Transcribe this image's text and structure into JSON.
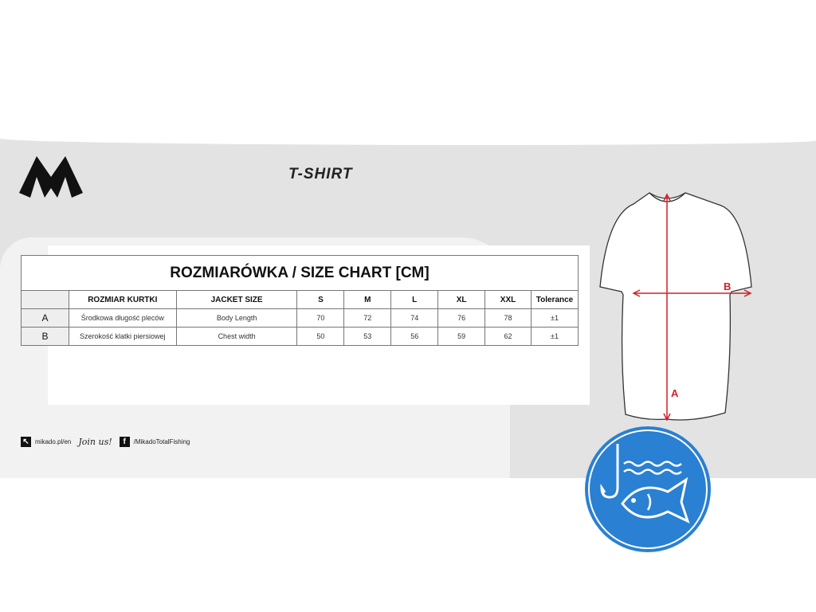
{
  "header": {
    "title": "T-SHIRT",
    "logo": "Mikado"
  },
  "table": {
    "title": "ROZMIARÓWKA / SIZE CHART [CM]",
    "columns": [
      "",
      "ROZMIAR KURTKI",
      "JACKET SIZE",
      "S",
      "M",
      "L",
      "XL",
      "XXL",
      "Tolerance"
    ],
    "rows": [
      [
        "A",
        "Środkowa długość pleców",
        "Body Length",
        "70",
        "72",
        "74",
        "76",
        "78",
        "±1"
      ],
      [
        "B",
        "Szerokość klatki piersiowej",
        "Chest width",
        "50",
        "53",
        "56",
        "59",
        "62",
        "±1"
      ]
    ]
  },
  "diagram": {
    "label_a": "A",
    "label_b": "B",
    "arrow_color": "#d0202a"
  },
  "footer": {
    "website": "mikado.pl/en",
    "join": "Join us!",
    "facebook": "/MikadoTotalFishing"
  },
  "badge": {
    "icon": "fishing-hook-fish-icon",
    "color": "#2a80d2"
  }
}
